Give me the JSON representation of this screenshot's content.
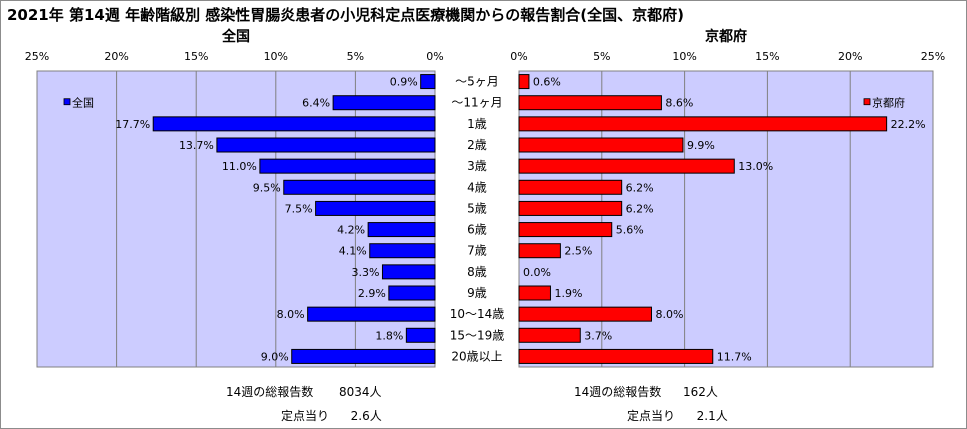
{
  "title": "2021年 第14週 年齢階級別 感染性胃腸炎患者の小児科定点医療機関からの報告割合(全国、京都府)",
  "chart_data": {
    "type": "bar",
    "orientation": "horizontal-back-to-back",
    "categories": [
      "～5ヶ月",
      "～11ヶ月",
      "1歳",
      "2歳",
      "3歳",
      "4歳",
      "5歳",
      "6歳",
      "7歳",
      "8歳",
      "9歳",
      "10～14歳",
      "15～19歳",
      "20歳以上"
    ],
    "series": [
      {
        "name": "全国",
        "panel_title": "全国",
        "color": "#0000ff",
        "values": [
          0.9,
          6.4,
          17.7,
          13.7,
          11.0,
          9.5,
          7.5,
          4.2,
          4.1,
          3.3,
          2.9,
          8.0,
          1.8,
          9.0
        ],
        "labels": [
          "0.9%",
          "6.4%",
          "17.7%",
          "13.7%",
          "11.0%",
          "9.5%",
          "7.5%",
          "4.2%",
          "4.1%",
          "3.3%",
          "2.9%",
          "8.0%",
          "1.8%",
          "9.0%"
        ]
      },
      {
        "name": "京都府",
        "panel_title": "京都府",
        "color": "#ff0000",
        "values": [
          0.6,
          8.6,
          22.2,
          9.9,
          13.0,
          6.2,
          6.2,
          5.6,
          2.5,
          0.0,
          1.9,
          8.0,
          3.7,
          11.7
        ],
        "labels": [
          "0.6%",
          "8.6%",
          "22.2%",
          "9.9%",
          "13.0%",
          "6.2%",
          "6.2%",
          "5.6%",
          "2.5%",
          "0.0%",
          "1.9%",
          "8.0%",
          "3.7%",
          "11.7%"
        ]
      }
    ],
    "xlim": [
      0,
      25
    ],
    "ticks": [
      "0%",
      "5%",
      "10%",
      "15%",
      "20%",
      "25%"
    ],
    "grid": true,
    "plot_background": "#ccccff"
  },
  "footer": {
    "national_total_label": "14週の総報告数",
    "national_total_value": "8034人",
    "national_per_label": "定点当り",
    "national_per_value": "2.6人",
    "kyoto_total_label": "14週の総報告数",
    "kyoto_total_value": "162人",
    "kyoto_per_label": "定点当り",
    "kyoto_per_value": "2.1人"
  }
}
